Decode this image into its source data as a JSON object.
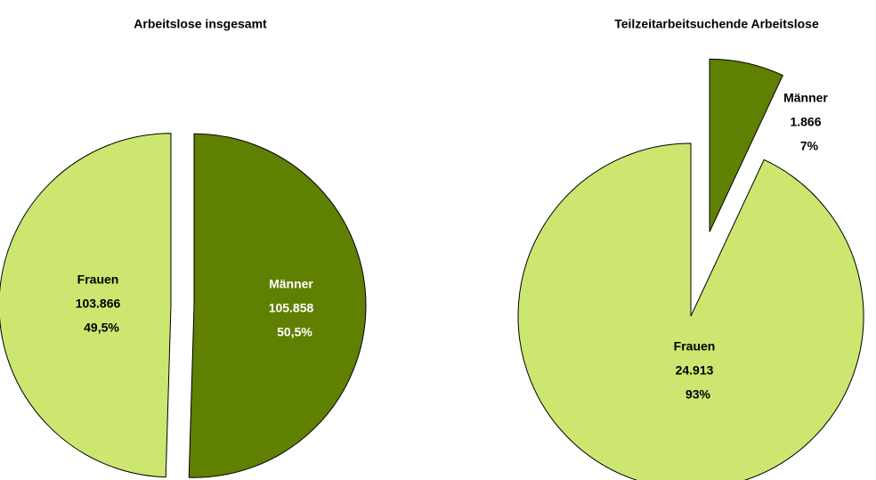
{
  "chart_data": [
    {
      "type": "pie",
      "title": "Arbeitslose insgesamt",
      "categories": [
        "Männer",
        "Frauen"
      ],
      "values": [
        105858,
        103866
      ],
      "value_labels": [
        "105.858",
        "103.866"
      ],
      "percentages": [
        50.5,
        49.5
      ],
      "percentage_labels": [
        "50,5%",
        "49,5%"
      ],
      "colors": [
        "#5f8000",
        "#cce670"
      ]
    },
    {
      "type": "pie",
      "title": "Teilzeitarbeitsuchende Arbeitslose",
      "categories": [
        "Männer",
        "Frauen"
      ],
      "values": [
        1866,
        24913
      ],
      "value_labels": [
        "1.866",
        "24.913"
      ],
      "percentages": [
        7,
        93
      ],
      "percentage_labels": [
        "7%",
        "93%"
      ],
      "colors": [
        "#5f8000",
        "#cce670"
      ]
    }
  ]
}
